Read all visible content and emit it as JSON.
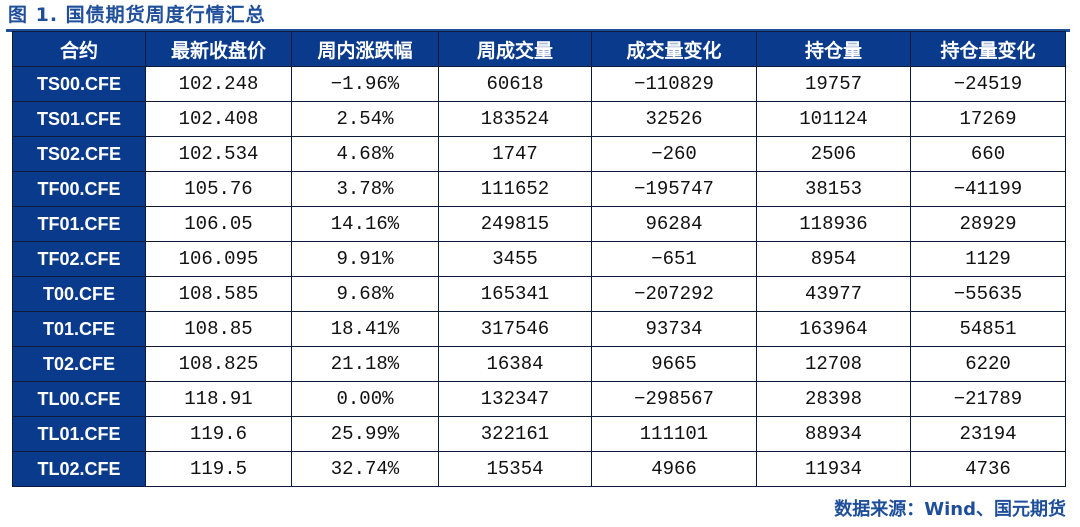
{
  "figure_title": "图 1. 国债期货周度行情汇总",
  "table": {
    "headers": [
      "合约",
      "最新收盘价",
      "周内涨跌幅",
      "周成交量",
      "成交量变化",
      "持仓量",
      "持仓量变化"
    ],
    "rows": [
      [
        "TS00.CFE",
        "102.248",
        "−1.96%",
        "60618",
        "−110829",
        "19757",
        "−24519"
      ],
      [
        "TS01.CFE",
        "102.408",
        "2.54%",
        "183524",
        "32526",
        "101124",
        "17269"
      ],
      [
        "TS02.CFE",
        "102.534",
        "4.68%",
        "1747",
        "−260",
        "2506",
        "660"
      ],
      [
        "TF00.CFE",
        "105.76",
        "3.78%",
        "111652",
        "−195747",
        "38153",
        "−41199"
      ],
      [
        "TF01.CFE",
        "106.05",
        "14.16%",
        "249815",
        "96284",
        "118936",
        "28929"
      ],
      [
        "TF02.CFE",
        "106.095",
        "9.91%",
        "3455",
        "−651",
        "8954",
        "1129"
      ],
      [
        "T00.CFE",
        "108.585",
        "9.68%",
        "165341",
        "−207292",
        "43977",
        "−55635"
      ],
      [
        "T01.CFE",
        "108.85",
        "18.41%",
        "317546",
        "93734",
        "163964",
        "54851"
      ],
      [
        "T02.CFE",
        "108.825",
        "21.18%",
        "16384",
        "9665",
        "12708",
        "6220"
      ],
      [
        "TL00.CFE",
        "118.91",
        "0.00%",
        "132347",
        "−298567",
        "28398",
        "−21789"
      ],
      [
        "TL01.CFE",
        "119.6",
        "25.99%",
        "322161",
        "111101",
        "88934",
        "23194"
      ],
      [
        "TL02.CFE",
        "119.5",
        "32.74%",
        "15354",
        "4966",
        "11934",
        "4736"
      ]
    ]
  },
  "source": "数据来源：Wind、国元期货",
  "colors": {
    "header_bg": "#0a3a8c",
    "accent": "#1f4e9a",
    "border": "#0d1b3a"
  }
}
